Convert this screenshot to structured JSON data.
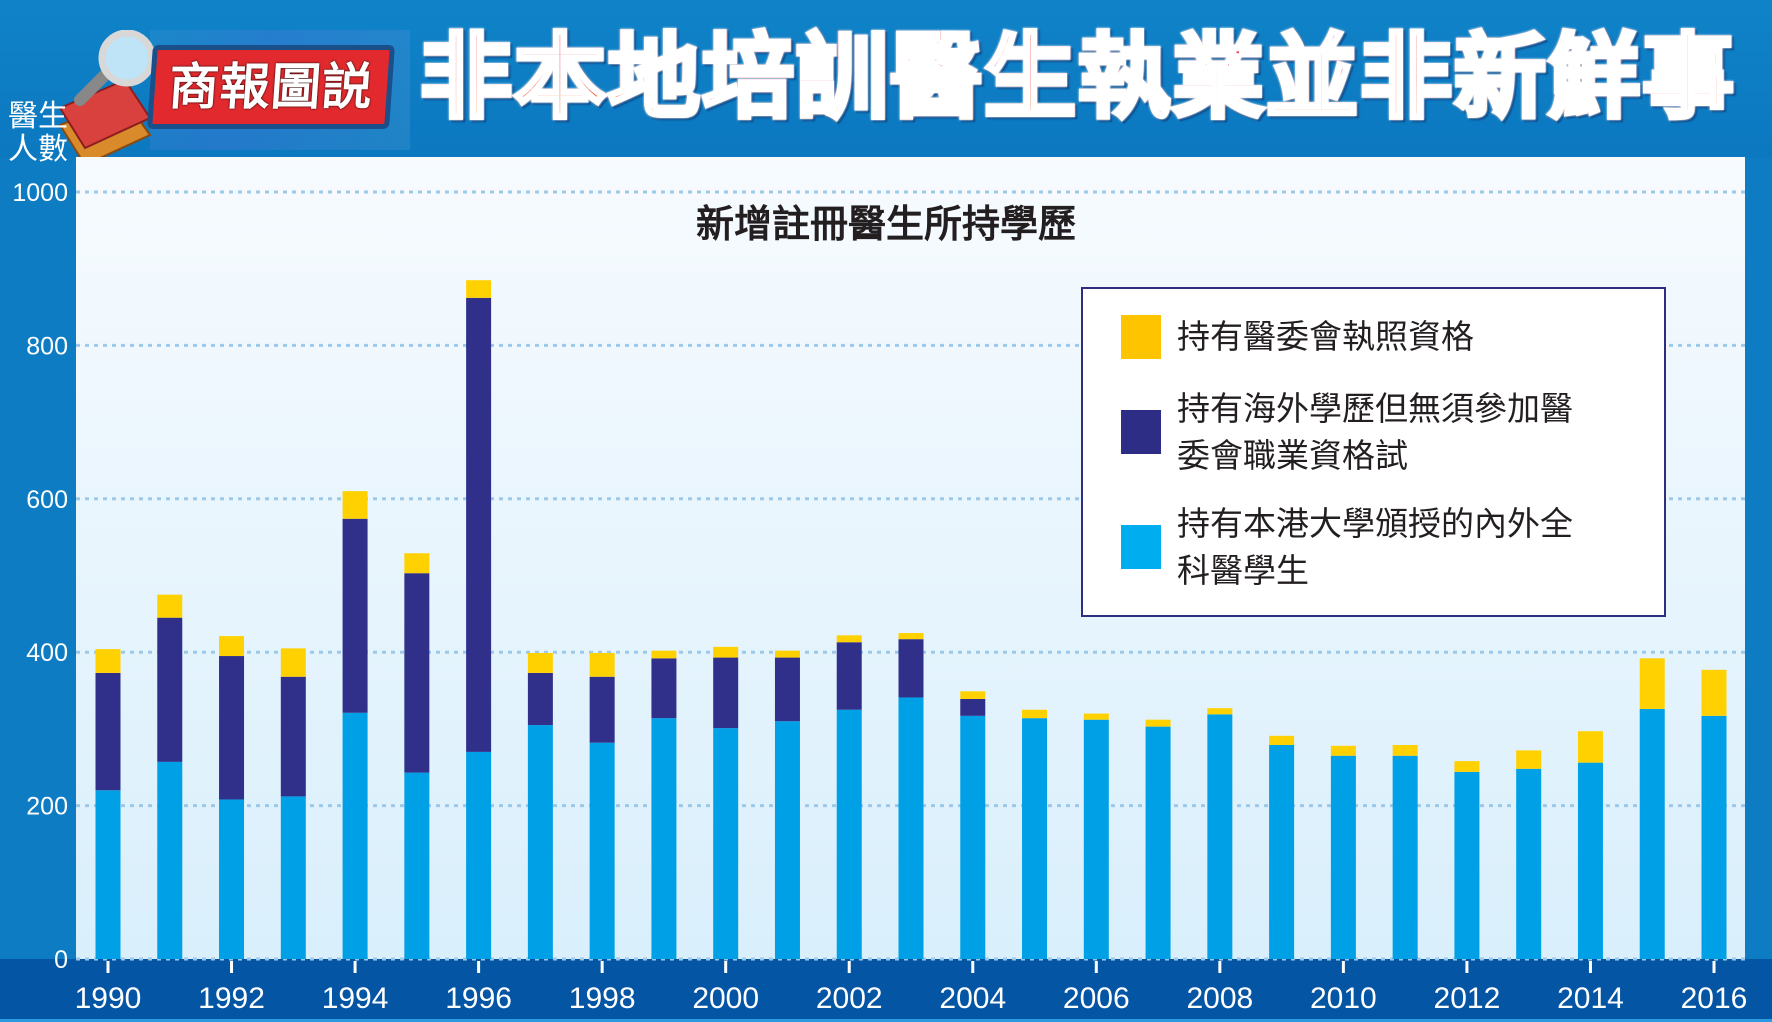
{
  "header": {
    "brand": "商報圖説",
    "headline": "非本地培訓醫生執業並非新鮮事"
  },
  "colors": {
    "local": "#00a0e6",
    "overseas_exempt": "#30308a",
    "licensing_exam": "#ffd100",
    "grid": "#9cc9ea"
  },
  "chart_data": {
    "type": "bar",
    "stacked": true,
    "title": "新增註冊醫生所持學歷",
    "ylabel": "醫生人數",
    "ylabel_lines": [
      "醫生",
      "人數"
    ],
    "xlabel": "",
    "ylim": [
      0,
      1000
    ],
    "yticks": [
      0,
      200,
      400,
      600,
      800,
      1000
    ],
    "xtick_labels": [
      "1990",
      "1992",
      "1994",
      "1996",
      "1998",
      "2000",
      "2002",
      "2004",
      "2006",
      "2008",
      "2010",
      "2012",
      "2014",
      "2016"
    ],
    "grid": true,
    "legend_position": "top-right",
    "categories": [
      "1990",
      "1991",
      "1992",
      "1993",
      "1994",
      "1995",
      "1996",
      "1997",
      "1998",
      "1999",
      "2000",
      "2001",
      "2002",
      "2003",
      "2004",
      "2005",
      "2006",
      "2007",
      "2008",
      "2009",
      "2010",
      "2011",
      "2012",
      "2013",
      "2014",
      "2015",
      "2016"
    ],
    "series": [
      {
        "name": "持有本港大學頒授的內外全科醫學生",
        "legend_lines": [
          "持有本港大學頒授的內外全",
          "科醫學生"
        ],
        "color": "#00a0e6",
        "values": [
          220,
          257,
          208,
          212,
          321,
          243,
          270,
          305,
          282,
          314,
          301,
          310,
          325,
          341,
          317,
          314,
          312,
          303,
          319,
          279,
          265,
          265,
          244,
          248,
          256,
          326,
          317
        ]
      },
      {
        "name": "持有海外學歷但無須參加醫委會職業資格試",
        "legend_lines": [
          "持有海外學歷但無須參加醫",
          "委會職業資格試"
        ],
        "color": "#30308a",
        "values": [
          153,
          188,
          187,
          156,
          253,
          260,
          592,
          68,
          86,
          78,
          92,
          83,
          88,
          76,
          22,
          0,
          0,
          0,
          0,
          0,
          0,
          0,
          0,
          0,
          0,
          0,
          0
        ]
      },
      {
        "name": "持有醫委會執照資格",
        "legend_lines": [
          "持有醫委會執照資格"
        ],
        "color": "#ffd100",
        "values": [
          31,
          30,
          26,
          37,
          36,
          26,
          23,
          26,
          31,
          10,
          14,
          9,
          9,
          8,
          10,
          11,
          8,
          9,
          8,
          12,
          13,
          14,
          14,
          24,
          41,
          66,
          60
        ]
      }
    ]
  }
}
